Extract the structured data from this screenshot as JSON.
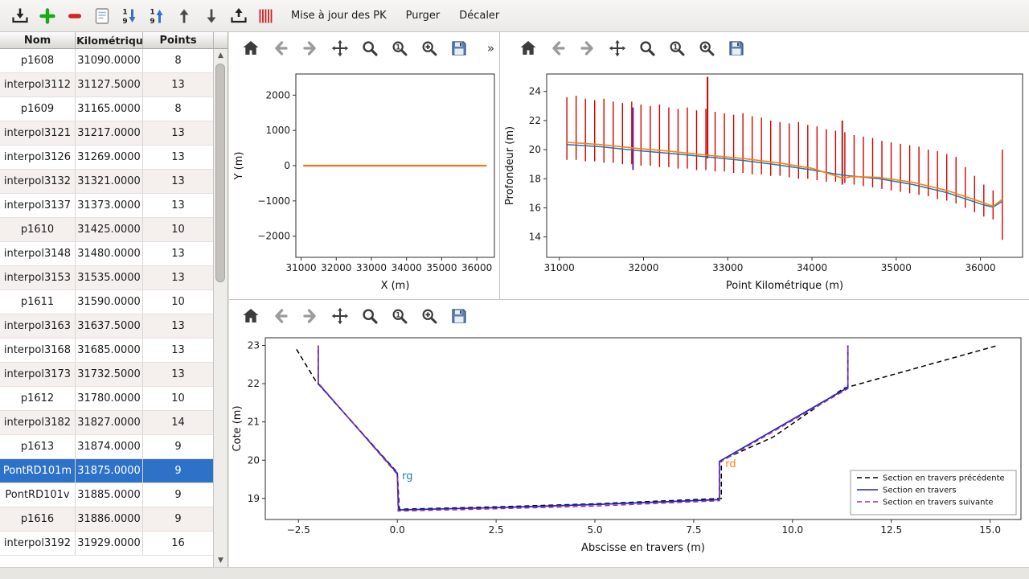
{
  "toolbar": {
    "icons": [
      {
        "name": "import"
      },
      {
        "name": "add"
      },
      {
        "name": "remove"
      },
      {
        "name": "edit-list"
      },
      {
        "name": "sort-descending"
      },
      {
        "name": "sort-ascending"
      },
      {
        "name": "move-up"
      },
      {
        "name": "move-down"
      },
      {
        "name": "export"
      },
      {
        "name": "sections"
      }
    ],
    "buttons": [
      "Mise à jour des PK",
      "Purger",
      "Décaler"
    ]
  },
  "table": {
    "headers": [
      "Nom",
      "t Kilométrique",
      "Points"
    ],
    "rows": [
      [
        "p1608",
        "31090.0000",
        "8"
      ],
      [
        "interpol3112",
        "31127.5000",
        "13"
      ],
      [
        "p1609",
        "31165.0000",
        "8"
      ],
      [
        "interpol3121",
        "31217.0000",
        "13"
      ],
      [
        "interpol3126",
        "31269.0000",
        "13"
      ],
      [
        "interpol3132",
        "31321.0000",
        "13"
      ],
      [
        "interpol3137",
        "31373.0000",
        "13"
      ],
      [
        "p1610",
        "31425.0000",
        "10"
      ],
      [
        "interpol3148",
        "31480.0000",
        "13"
      ],
      [
        "interpol3153",
        "31535.0000",
        "13"
      ],
      [
        "p1611",
        "31590.0000",
        "10"
      ],
      [
        "interpol3163",
        "31637.5000",
        "13"
      ],
      [
        "interpol3168",
        "31685.0000",
        "13"
      ],
      [
        "interpol3173",
        "31732.5000",
        "13"
      ],
      [
        "p1612",
        "31780.0000",
        "10"
      ],
      [
        "interpol3182",
        "31827.0000",
        "14"
      ],
      [
        "p1613",
        "31874.0000",
        "9"
      ],
      [
        "PontRD101m",
        "31875.0000",
        "9"
      ],
      [
        "PontRD101v",
        "31885.0000",
        "9"
      ],
      [
        "p1616",
        "31886.0000",
        "9"
      ],
      [
        "interpol3192",
        "31929.0000",
        "16"
      ]
    ],
    "selected": "PontRD101m",
    "selection_color": "#2d72c8"
  },
  "mpl_toolbar": {
    "icons": [
      "home",
      "back",
      "forward",
      "pan",
      "zoom",
      "zoom-one",
      "zoom-plus",
      "save"
    ],
    "overflow": "»"
  },
  "chart_data": [
    {
      "id": "plan",
      "type": "line",
      "title": "",
      "xlabel": "X (m)",
      "ylabel": "Y (m)",
      "xlim": [
        30850,
        36500
      ],
      "ylim": [
        -2600,
        2600
      ],
      "xticks": [
        31000,
        32000,
        33000,
        34000,
        35000,
        36000
      ],
      "xtick_labels": [
        "31000",
        "32000",
        "33000",
        "34000",
        "35000",
        "36000"
      ],
      "yticks": [
        2000,
        1000,
        0,
        -1000,
        -2000
      ],
      "ytick_labels": [
        "2000",
        "1000",
        "0",
        "−1000",
        "−2000"
      ],
      "grid": false,
      "legend": false,
      "series": [
        {
          "name": "trace",
          "color": "#e8791e",
          "width": 2.2,
          "dash": "",
          "x": [
            31060,
            36280
          ],
          "y": [
            0,
            0
          ]
        }
      ]
    },
    {
      "id": "profil",
      "type": "line",
      "title": "",
      "xlabel": "Point Kilométrique (m)",
      "ylabel": "Profondeur (m)",
      "xlim": [
        30850,
        36500
      ],
      "ylim": [
        12.6,
        25.2
      ],
      "xticks": [
        31000,
        32000,
        33000,
        34000,
        35000,
        36000
      ],
      "xtick_labels": [
        "31000",
        "32000",
        "33000",
        "34000",
        "35000",
        "36000"
      ],
      "yticks": [
        14,
        16,
        18,
        20,
        22,
        24
      ],
      "ytick_labels": [
        "14",
        "16",
        "18",
        "20",
        "22",
        "24"
      ],
      "grid": false,
      "legend": false,
      "bars": {
        "color": "#d40000",
        "width": 1.4,
        "x": [
          31090,
          31200,
          31310,
          31420,
          31530,
          31640,
          31750,
          31860,
          31970,
          32080,
          32190,
          32300,
          32410,
          32520,
          32630,
          32740,
          32850,
          32960,
          33070,
          33180,
          33290,
          33400,
          33510,
          33620,
          33730,
          33840,
          33950,
          34060,
          34170,
          34280,
          34390,
          34500,
          34610,
          34720,
          34830,
          34940,
          35050,
          35160,
          35270,
          35380,
          35490,
          35600,
          35710,
          35820,
          35930,
          36040,
          36150,
          36260
        ],
        "ymin": [
          19.3,
          19.3,
          19.2,
          19.2,
          19.1,
          19.1,
          19.0,
          19.0,
          18.9,
          18.9,
          18.8,
          18.8,
          18.7,
          18.7,
          18.6,
          18.6,
          18.5,
          18.5,
          18.4,
          18.4,
          18.3,
          18.3,
          18.2,
          18.2,
          18.1,
          18.0,
          18.0,
          17.9,
          17.8,
          17.8,
          17.7,
          17.6,
          17.5,
          17.4,
          17.3,
          17.2,
          17.1,
          17.0,
          16.9,
          16.8,
          16.6,
          16.5,
          16.3,
          16.0,
          15.7,
          15.4,
          15.2,
          13.8
        ],
        "ymax": [
          23.6,
          23.7,
          23.5,
          23.4,
          23.5,
          23.3,
          23.2,
          23.3,
          23.1,
          23.0,
          23.1,
          22.9,
          22.8,
          22.9,
          22.7,
          22.8,
          22.6,
          22.5,
          22.4,
          22.5,
          22.3,
          22.2,
          22.0,
          21.9,
          21.8,
          21.9,
          21.7,
          21.6,
          21.4,
          21.3,
          21.2,
          21.0,
          20.9,
          20.8,
          20.6,
          20.5,
          20.4,
          20.3,
          20.2,
          20.0,
          19.9,
          19.7,
          19.5,
          18.8,
          18.2,
          17.6,
          17.2,
          20.0
        ]
      },
      "vlines": [
        {
          "x": 31875,
          "y0": 18.6,
          "y1": 22.9,
          "color": "#7b1fa2",
          "width": 2
        },
        {
          "x": 32760,
          "y0": 19.4,
          "y1": 25.0,
          "color": "#cc0000",
          "width": 2
        },
        {
          "x": 34360,
          "y0": 17.6,
          "y1": 22.0,
          "color": "#b71c1c",
          "width": 2
        }
      ],
      "series": [
        {
          "name": "fond moyen",
          "color": "#1f77b4",
          "width": 1.5,
          "dash": "",
          "x": [
            31090,
            31500,
            31900,
            32300,
            32760,
            33200,
            33600,
            34000,
            34360,
            34800,
            35200,
            35600,
            36040,
            36150,
            36260
          ],
          "y": [
            20.35,
            20.2,
            19.95,
            19.75,
            19.5,
            19.25,
            18.95,
            18.6,
            18.25,
            18.0,
            17.6,
            17.05,
            16.2,
            16.05,
            16.45
          ]
        },
        {
          "name": "fond",
          "color": "#ff7f0e",
          "width": 1.6,
          "dash": "",
          "x": [
            31090,
            31500,
            31900,
            32300,
            32760,
            33200,
            33600,
            34000,
            34360,
            34480,
            34800,
            35200,
            35600,
            36040,
            36150,
            36260
          ],
          "y": [
            20.5,
            20.35,
            20.1,
            19.9,
            19.62,
            19.38,
            19.1,
            18.72,
            18.05,
            18.15,
            18.1,
            17.75,
            17.2,
            16.35,
            16.1,
            16.6
          ]
        }
      ]
    },
    {
      "id": "travers",
      "type": "line",
      "title": "",
      "xlabel": "Abscisse en travers (m)",
      "ylabel": "Cote (m)",
      "xlim": [
        -3.34,
        15.78
      ],
      "ylim": [
        18.45,
        23.2
      ],
      "xticks": [
        -2.5,
        0.0,
        2.5,
        5.0,
        7.5,
        10.0,
        12.5,
        15.0
      ],
      "xtick_labels": [
        "−2.5",
        "0.0",
        "2.5",
        "5.0",
        "7.5",
        "10.0",
        "12.5",
        "15.0"
      ],
      "yticks": [
        19,
        20,
        21,
        22,
        23
      ],
      "ytick_labels": [
        "19",
        "20",
        "21",
        "22",
        "23"
      ],
      "grid": false,
      "legend": true,
      "series": [
        {
          "name": "Section en travers précédente",
          "color": "#000000",
          "width": 1.5,
          "dash": "6,4",
          "x": [
            -2.55,
            -2.05,
            0.0,
            0.05,
            2.5,
            5.0,
            8.2,
            8.2,
            9.5,
            11.3,
            15.2
          ],
          "y": [
            22.9,
            22.05,
            19.68,
            18.72,
            18.78,
            18.86,
            19.0,
            20.0,
            20.6,
            21.88,
            23.0
          ]
        },
        {
          "name": "Section en travers",
          "color": "#2222cc",
          "width": 1.7,
          "dash": "",
          "x": [
            -2.0,
            -2.0,
            0.0,
            0.03,
            2.5,
            5.0,
            8.15,
            8.15,
            11.4,
            11.4
          ],
          "y": [
            23.0,
            22.0,
            19.66,
            18.7,
            18.76,
            18.84,
            18.97,
            19.97,
            21.9,
            23.0
          ]
        },
        {
          "name": "Section en travers suivante",
          "color": "#993399",
          "width": 1.5,
          "dash": "6,4",
          "x": [
            -2.0,
            -2.0,
            0.0,
            0.02,
            2.5,
            5.0,
            8.15,
            8.15,
            11.4,
            11.4
          ],
          "y": [
            23.0,
            22.02,
            19.63,
            18.67,
            18.73,
            18.8,
            18.94,
            19.94,
            21.87,
            22.98
          ]
        }
      ],
      "annotations": [
        {
          "text": "rg",
          "x": 0.12,
          "y": 19.5,
          "color": "#1f77b4"
        },
        {
          "text": "rd",
          "x": 8.3,
          "y": 19.82,
          "color": "#ff7f0e"
        }
      ],
      "legend_position": "lower-right"
    }
  ]
}
